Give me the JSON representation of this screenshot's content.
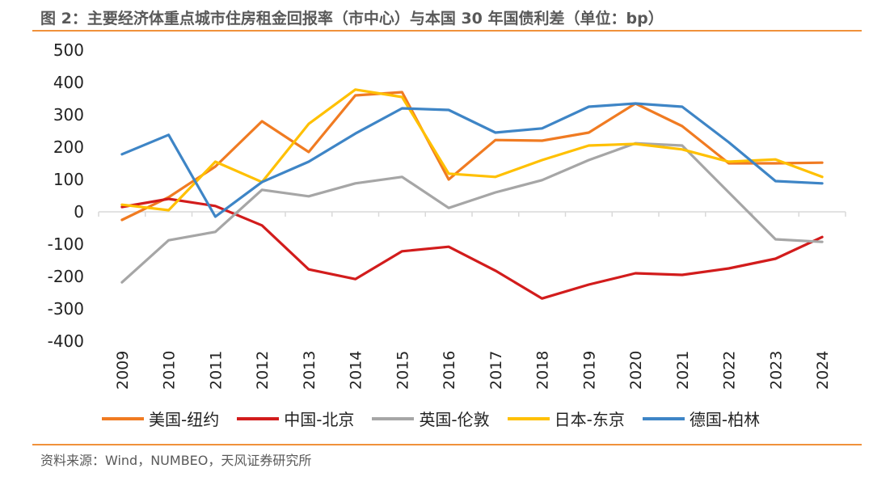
{
  "title": "图 2：主要经济体重点城市住房租金回报率（市中心）与本国 30 年国债利差（单位：bp）",
  "source": "资料来源：Wind，NUMBEO，天风证券研究所",
  "colors": {
    "accent_rule": "#f0913b",
    "axis": "#d9d9d9"
  },
  "chart_data": {
    "type": "line",
    "x": [
      "2009",
      "2010",
      "2011",
      "2012",
      "2013",
      "2014",
      "2015",
      "2016",
      "2017",
      "2018",
      "2019",
      "2020",
      "2021",
      "2022",
      "2023",
      "2024"
    ],
    "ylim": [
      -400,
      500
    ],
    "yticks": [
      "500",
      "400",
      "300",
      "200",
      "100",
      "0",
      "-100",
      "-200",
      "-300",
      "-400"
    ],
    "grid": false,
    "legend_position": "bottom",
    "series": [
      {
        "name": "美国-纽约",
        "color": "#f07b22",
        "values": [
          -25,
          45,
          140,
          280,
          185,
          360,
          370,
          100,
          222,
          220,
          245,
          335,
          265,
          150,
          150,
          152
        ]
      },
      {
        "name": "中国-北京",
        "color": "#d21c1c",
        "values": [
          15,
          40,
          18,
          -42,
          -178,
          -208,
          -122,
          -108,
          -182,
          -268,
          -225,
          -190,
          -195,
          -175,
          -145,
          -78
        ]
      },
      {
        "name": "英国-伦敦",
        "color": "#a6a6a6",
        "values": [
          -218,
          -88,
          -62,
          68,
          48,
          88,
          108,
          12,
          60,
          98,
          160,
          212,
          205,
          60,
          -85,
          -93
        ]
      },
      {
        "name": "日本-东京",
        "color": "#ffc000",
        "values": [
          22,
          5,
          155,
          92,
          272,
          378,
          355,
          118,
          108,
          160,
          205,
          210,
          193,
          155,
          162,
          108
        ]
      },
      {
        "name": "德国-柏林",
        "color": "#3e85c6",
        "values": [
          178,
          238,
          -15,
          92,
          155,
          242,
          320,
          315,
          245,
          258,
          325,
          335,
          325,
          215,
          95,
          88
        ]
      }
    ]
  }
}
